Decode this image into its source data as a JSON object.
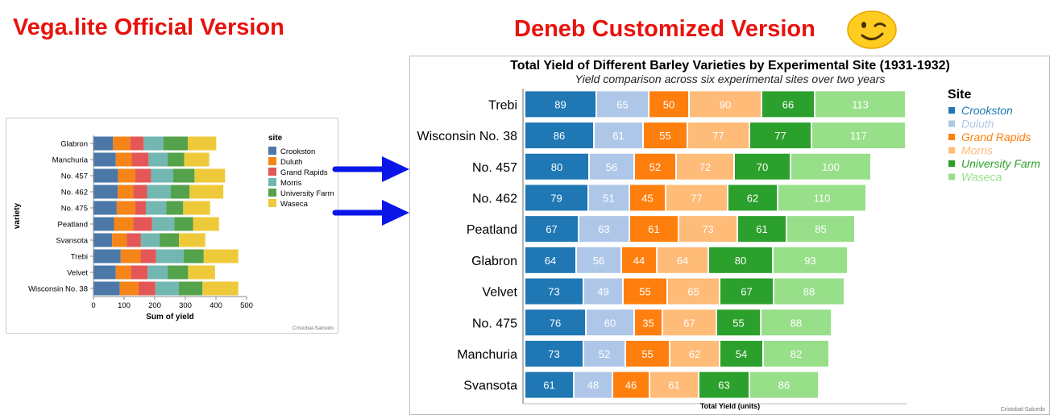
{
  "headings": {
    "left": "Vega.lite Official Version",
    "right": "Deneb Customized Version"
  },
  "emoji_icon": "winking-face-icon",
  "arrow_color": "#0a16e8",
  "heading_color": "#e8120c",
  "chart_data": [
    {
      "type": "bar",
      "stacked": true,
      "orientation": "horizontal",
      "title": "",
      "xlabel": "Sum of yield",
      "ylabel": "variety",
      "xlim": [
        0,
        500
      ],
      "xticks": [
        0,
        100,
        200,
        300,
        400,
        500
      ],
      "grid": false,
      "legend": {
        "title": "site",
        "placement": "right"
      },
      "credit": "Cristobal-Salcedo",
      "categories": [
        "Glabron",
        "Manchuria",
        "No. 457",
        "No. 462",
        "No. 475",
        "Peatland",
        "Svansota",
        "Trebi",
        "Velvet",
        "Wisconsin No. 38"
      ],
      "series": [
        {
          "name": "Crookston",
          "color": "#4c78a8",
          "values": [
            64,
            73,
            80,
            79,
            76,
            67,
            61,
            89,
            73,
            86
          ]
        },
        {
          "name": "Duluth",
          "color": "#f58518",
          "values": [
            56,
            52,
            56,
            51,
            60,
            63,
            48,
            65,
            49,
            61
          ]
        },
        {
          "name": "Grand Rapids",
          "color": "#e45756",
          "values": [
            44,
            55,
            52,
            45,
            35,
            61,
            46,
            50,
            55,
            55
          ]
        },
        {
          "name": "Morris",
          "color": "#72b7b2",
          "values": [
            64,
            62,
            72,
            77,
            67,
            73,
            61,
            90,
            65,
            77
          ]
        },
        {
          "name": "University Farm",
          "color": "#54a24b",
          "values": [
            80,
            54,
            70,
            62,
            55,
            61,
            63,
            66,
            67,
            77
          ]
        },
        {
          "name": "Waseca",
          "color": "#eeca3b",
          "values": [
            93,
            82,
            100,
            110,
            88,
            85,
            86,
            113,
            88,
            117
          ]
        }
      ]
    },
    {
      "type": "bar",
      "stacked": true,
      "orientation": "horizontal",
      "sorted": "descending total",
      "title": "Total Yield of Different Barley Varieties by Experimental Site (1931-1932)",
      "subtitle": "Yield comparison across six experimental sites over two years",
      "xlabel": "Total Yield (units)",
      "ylabel": "",
      "grid": false,
      "data_labels": true,
      "legend": {
        "title": "Site",
        "placement": "right"
      },
      "credit": "Cristobal-Salcedo",
      "categories": [
        "Trebi",
        "Wisconsin No. 38",
        "No. 457",
        "No. 462",
        "Peatland",
        "Glabron",
        "Velvet",
        "No. 475",
        "Manchuria",
        "Svansota"
      ],
      "series": [
        {
          "name": "Crookston",
          "color": "#1f77b4",
          "values": [
            89,
            86,
            80,
            79,
            67,
            64,
            73,
            76,
            73,
            61
          ]
        },
        {
          "name": "Duluth",
          "color": "#aec7e8",
          "values": [
            65,
            61,
            56,
            51,
            63,
            56,
            49,
            60,
            52,
            48
          ]
        },
        {
          "name": "Grand Rapids",
          "color": "#ff7f0e",
          "values": [
            50,
            55,
            52,
            45,
            61,
            44,
            55,
            35,
            55,
            46
          ]
        },
        {
          "name": "Morris",
          "color": "#ffbb78",
          "values": [
            90,
            77,
            72,
            77,
            73,
            64,
            65,
            67,
            62,
            61
          ]
        },
        {
          "name": "University Farm",
          "color": "#2ca02c",
          "values": [
            66,
            77,
            70,
            62,
            61,
            80,
            67,
            55,
            54,
            63
          ]
        },
        {
          "name": "Waseca",
          "color": "#98df8a",
          "values": [
            113,
            117,
            100,
            110,
            85,
            93,
            88,
            88,
            82,
            86
          ]
        }
      ]
    }
  ]
}
